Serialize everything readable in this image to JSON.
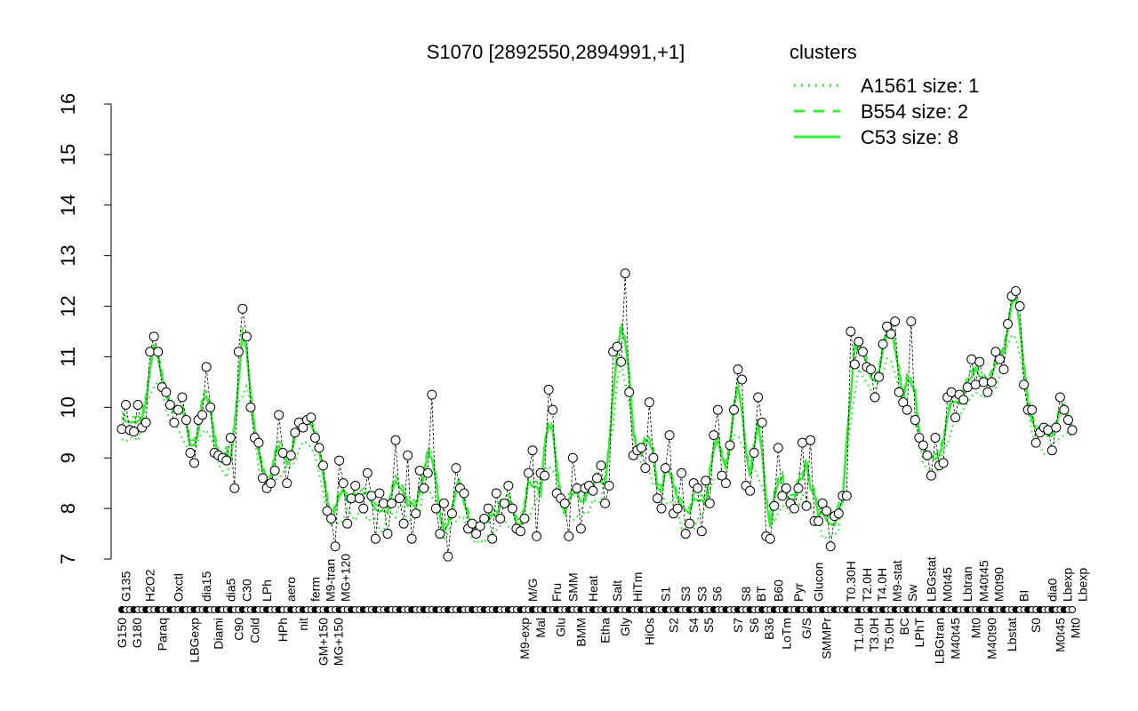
{
  "chart_data": {
    "type": "scatter",
    "title": "S1070 [2892550,2894991,+1]",
    "xlabel": "",
    "ylabel": "",
    "ylim": [
      7,
      16
    ],
    "yticks": [
      7,
      8,
      9,
      10,
      11,
      12,
      13,
      14,
      15,
      16
    ],
    "grid": false,
    "legend": {
      "title": "clusters",
      "placement": "top-right",
      "entries": [
        {
          "label": "A1561 size: 1",
          "style": "dotted"
        },
        {
          "label": "B554 size: 2",
          "style": "dashed"
        },
        {
          "label": "C53 size: 8",
          "style": "solid"
        }
      ]
    },
    "colors": {
      "line": "#33ee33",
      "legend_text": "#33ee33",
      "point_fill": "#ffffff",
      "point_stroke": "#000000"
    },
    "points": [
      {
        "y": 9.57,
        "label": "G150"
      },
      {
        "y": 10.05,
        "label": "G135"
      },
      {
        "y": 9.55
      },
      {
        "y": 9.52,
        "label": "G180"
      },
      {
        "y": 10.05
      },
      {
        "y": 9.6
      },
      {
        "y": 9.7
      },
      {
        "y": 11.1,
        "label": "H2O2"
      },
      {
        "y": 11.4
      },
      {
        "y": 11.1
      },
      {
        "y": 10.4,
        "label": "Paraq"
      },
      {
        "y": 10.3
      },
      {
        "y": 10.05
      },
      {
        "y": 9.7
      },
      {
        "y": 9.95,
        "label": "Oxctl"
      },
      {
        "y": 10.2
      },
      {
        "y": 9.75
      },
      {
        "y": 9.1
      },
      {
        "y": 8.9,
        "label": "LBGexp"
      },
      {
        "y": 9.75
      },
      {
        "y": 9.85
      },
      {
        "y": 10.8,
        "label": "dia15"
      },
      {
        "y": 10.0
      },
      {
        "y": 9.1
      },
      {
        "y": 9.05,
        "label": "Diami"
      },
      {
        "y": 9.0
      },
      {
        "y": 8.95
      },
      {
        "y": 9.4,
        "label": "dia5"
      },
      {
        "y": 8.4
      },
      {
        "y": 11.1,
        "label": "C90"
      },
      {
        "y": 11.95
      },
      {
        "y": 11.4,
        "label": "C30"
      },
      {
        "y": 10.0
      },
      {
        "y": 9.4,
        "label": "Cold"
      },
      {
        "y": 9.3
      },
      {
        "y": 8.6
      },
      {
        "y": 8.4,
        "label": "LPh"
      },
      {
        "y": 8.5
      },
      {
        "y": 8.75
      },
      {
        "y": 9.85
      },
      {
        "y": 9.1,
        "label": "HPh"
      },
      {
        "y": 8.5
      },
      {
        "y": 9.05,
        "label": "aero"
      },
      {
        "y": 9.5
      },
      {
        "y": 9.7
      },
      {
        "y": 9.6,
        "label": "nit"
      },
      {
        "y": 9.75
      },
      {
        "y": 9.8
      },
      {
        "y": 9.4,
        "label": "ferm"
      },
      {
        "y": 9.2
      },
      {
        "y": 8.85,
        "label": "GM+150"
      },
      {
        "y": 7.95,
        "label": "M9-tran"
      },
      {
        "y": 7.8
      },
      {
        "y": 7.25,
        "label": "MG+150"
      },
      {
        "y": 8.95
      },
      {
        "y": 8.5,
        "label": "MG+120"
      },
      {
        "y": 7.7
      },
      {
        "y": 8.2
      },
      {
        "y": 8.45
      },
      {
        "y": 8.2
      },
      {
        "y": 8.0
      },
      {
        "y": 8.7
      },
      {
        "y": 8.25
      },
      {
        "y": 7.4
      },
      {
        "y": 8.3
      },
      {
        "y": 8.1
      },
      {
        "y": 7.5
      },
      {
        "y": 8.1
      },
      {
        "y": 9.35
      },
      {
        "y": 8.2
      },
      {
        "y": 7.7
      },
      {
        "y": 9.05
      },
      {
        "y": 7.4
      },
      {
        "y": 7.9
      },
      {
        "y": 8.75
      },
      {
        "y": 8.4
      },
      {
        "y": 8.7
      },
      {
        "y": 10.25
      },
      {
        "y": 8.0
      },
      {
        "y": 7.5
      },
      {
        "y": 8.1
      },
      {
        "y": 7.05
      },
      {
        "y": 7.9
      },
      {
        "y": 8.8
      },
      {
        "y": 8.4
      },
      {
        "y": 8.3
      },
      {
        "y": 7.6
      },
      {
        "y": 7.7
      },
      {
        "y": 7.5
      },
      {
        "y": 7.65
      },
      {
        "y": 7.8
      },
      {
        "y": 8.0
      },
      {
        "y": 7.4
      },
      {
        "y": 8.3
      },
      {
        "y": 7.8
      },
      {
        "y": 8.1
      },
      {
        "y": 8.45
      },
      {
        "y": 8.0
      },
      {
        "y": 7.6
      },
      {
        "y": 7.55
      },
      {
        "y": 7.8,
        "label": "M9-exp"
      },
      {
        "y": 8.7
      },
      {
        "y": 9.15,
        "label": "M/G"
      },
      {
        "y": 7.45
      },
      {
        "y": 8.7,
        "label": "Mal"
      },
      {
        "y": 8.65
      },
      {
        "y": 10.35
      },
      {
        "y": 9.95
      },
      {
        "y": 8.3,
        "label": "Fru"
      },
      {
        "y": 8.2,
        "label": "Glu"
      },
      {
        "y": 8.1
      },
      {
        "y": 7.45
      },
      {
        "y": 9.0,
        "label": "SMM"
      },
      {
        "y": 8.4
      },
      {
        "y": 7.6,
        "label": "BMM"
      },
      {
        "y": 8.4
      },
      {
        "y": 8.45
      },
      {
        "y": 8.35,
        "label": "Heat"
      },
      {
        "y": 8.6
      },
      {
        "y": 8.85
      },
      {
        "y": 8.1,
        "label": "Etha"
      },
      {
        "y": 8.45
      },
      {
        "y": 11.1
      },
      {
        "y": 11.2,
        "label": "Salt"
      },
      {
        "y": 10.9
      },
      {
        "y": 12.65,
        "label": "Gly"
      },
      {
        "y": 10.3
      },
      {
        "y": 9.05
      },
      {
        "y": 9.15,
        "label": "HiTm"
      },
      {
        "y": 9.2
      },
      {
        "y": 8.8
      },
      {
        "y": 10.1,
        "label": "HiOs"
      },
      {
        "y": 9.0
      },
      {
        "y": 8.2
      },
      {
        "y": 8.0
      },
      {
        "y": 8.8,
        "label": "S1"
      },
      {
        "y": 9.45
      },
      {
        "y": 7.9,
        "label": "S2"
      },
      {
        "y": 8.0
      },
      {
        "y": 8.7
      },
      {
        "y": 7.5,
        "label": "S3"
      },
      {
        "y": 7.7
      },
      {
        "y": 8.5,
        "label": "S4"
      },
      {
        "y": 8.4
      },
      {
        "y": 7.55,
        "label": "S3"
      },
      {
        "y": 8.55,
        "label": "S5"
      },
      {
        "y": 8.1
      },
      {
        "y": 9.45,
        "label": "S6"
      },
      {
        "y": 9.95
      },
      {
        "y": 8.65
      },
      {
        "y": 8.5
      },
      {
        "y": 9.25
      },
      {
        "y": 9.95
      },
      {
        "y": 10.75,
        "label": "S7"
      },
      {
        "y": 10.55
      },
      {
        "y": 8.45,
        "label": "S8"
      },
      {
        "y": 8.35
      },
      {
        "y": 9.1,
        "label": "S6"
      },
      {
        "y": 10.2,
        "label": "BT"
      },
      {
        "y": 9.7
      },
      {
        "y": 7.45,
        "label": "B36"
      },
      {
        "y": 7.4
      },
      {
        "y": 8.05
      },
      {
        "y": 9.2,
        "label": "B60"
      },
      {
        "y": 8.25
      },
      {
        "y": 8.4,
        "label": "LoTm"
      },
      {
        "y": 8.1
      },
      {
        "y": 8.0
      },
      {
        "y": 8.4,
        "label": "Pyr"
      },
      {
        "y": 9.3
      },
      {
        "y": 8.05,
        "label": "G/S"
      },
      {
        "y": 9.35
      },
      {
        "y": 7.75
      },
      {
        "y": 7.75,
        "label": "Glucon"
      },
      {
        "y": 8.1
      },
      {
        "y": 7.95,
        "label": "SMMPr"
      },
      {
        "y": 7.25
      },
      {
        "y": 7.85
      },
      {
        "y": 7.9
      },
      {
        "y": 8.25
      },
      {
        "y": 8.25
      },
      {
        "y": 11.5,
        "label": "T0.30H"
      },
      {
        "y": 10.85
      },
      {
        "y": 11.3,
        "label": "T1.0H"
      },
      {
        "y": 11.1
      },
      {
        "y": 10.8,
        "label": "T2.0H"
      },
      {
        "y": 10.75,
        "label": "T3.0H"
      },
      {
        "y": 10.2,
        "label": "T4.0H"
      },
      {
        "y": 10.6,
        "label": "T5.0H"
      },
      {
        "y": 11.25
      },
      {
        "y": 11.6,
        "label": "M9-stat"
      },
      {
        "y": 11.45,
        "label": "BC"
      },
      {
        "y": 11.7
      },
      {
        "y": 10.3
      },
      {
        "y": 10.1
      },
      {
        "y": 9.95
      },
      {
        "y": 11.7,
        "label": "Sw"
      },
      {
        "y": 9.75
      },
      {
        "y": 9.4,
        "label": "LPhT"
      },
      {
        "y": 9.25
      },
      {
        "y": 9.05
      },
      {
        "y": 8.65,
        "label": "LBGstat"
      },
      {
        "y": 9.4
      },
      {
        "y": 8.85,
        "label": "LBGtran"
      },
      {
        "y": 8.9
      },
      {
        "y": 10.2,
        "label": "M0t45"
      },
      {
        "y": 10.3
      },
      {
        "y": 9.8,
        "label": "M40t45"
      },
      {
        "y": 10.25
      },
      {
        "y": 10.15
      },
      {
        "y": 10.4,
        "label": "Lbtran"
      },
      {
        "y": 10.95
      },
      {
        "y": 10.45,
        "label": "Mt0"
      },
      {
        "y": 10.9
      },
      {
        "y": 10.5,
        "label": "M40t45"
      },
      {
        "y": 10.3
      },
      {
        "y": 10.5,
        "label": "M40t90"
      },
      {
        "y": 11.1,
        "label": "M0t90"
      },
      {
        "y": 10.95
      },
      {
        "y": 10.75
      },
      {
        "y": 11.65
      },
      {
        "y": 12.2,
        "label": "Lbstat"
      },
      {
        "y": 12.3
      },
      {
        "y": 12.0
      },
      {
        "y": 10.45,
        "label": "BI"
      },
      {
        "y": 9.95
      },
      {
        "y": 9.95
      },
      {
        "y": 9.3,
        "label": "S0"
      },
      {
        "y": 9.5
      },
      {
        "y": 9.6
      },
      {
        "y": 9.55
      },
      {
        "y": 9.15,
        "label": "dia0"
      },
      {
        "y": 9.6
      },
      {
        "y": 10.2,
        "label": "M0t45"
      },
      {
        "y": 9.95,
        "label": "Lbexp"
      },
      {
        "y": 9.75,
        "label": "Mt0"
      },
      {
        "y": 9.55,
        "label": "Lbexp"
      }
    ]
  }
}
